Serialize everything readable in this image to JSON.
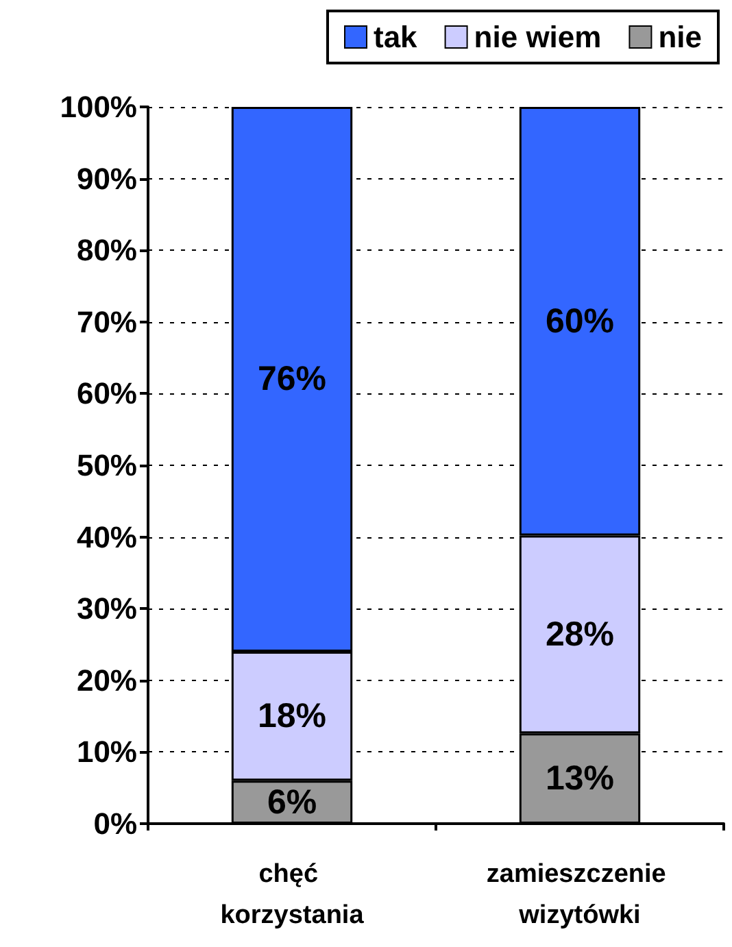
{
  "chart_data": {
    "type": "bar",
    "stacked": true,
    "categories": [
      "chęć korzystania",
      "zamieszczenie wizytówki"
    ],
    "series": [
      {
        "name": "nie",
        "color": "#999999",
        "values": [
          6,
          12.6
        ],
        "value_labels": [
          "6%",
          "13%"
        ]
      },
      {
        "name": "nie wiem",
        "color": "#ccccff",
        "values": [
          18,
          27.6
        ],
        "value_labels": [
          "18%",
          "28%"
        ]
      },
      {
        "name": "tak",
        "color": "#3366ff",
        "values": [
          76,
          59.8
        ],
        "value_labels": [
          "76%",
          "60%"
        ]
      }
    ],
    "ylim": [
      0,
      100
    ],
    "yticks": [
      {
        "value": 0,
        "label": "0%"
      },
      {
        "value": 10,
        "label": "10%"
      },
      {
        "value": 20,
        "label": "20%"
      },
      {
        "value": 30,
        "label": "30%"
      },
      {
        "value": 40,
        "label": "40%"
      },
      {
        "value": 50,
        "label": "50%"
      },
      {
        "value": 60,
        "label": "60%"
      },
      {
        "value": 70,
        "label": "70%"
      },
      {
        "value": 80,
        "label": "80%"
      },
      {
        "value": 90,
        "label": "90%"
      },
      {
        "value": 100,
        "label": "100%"
      }
    ],
    "grid": "y",
    "legend": "top right"
  }
}
